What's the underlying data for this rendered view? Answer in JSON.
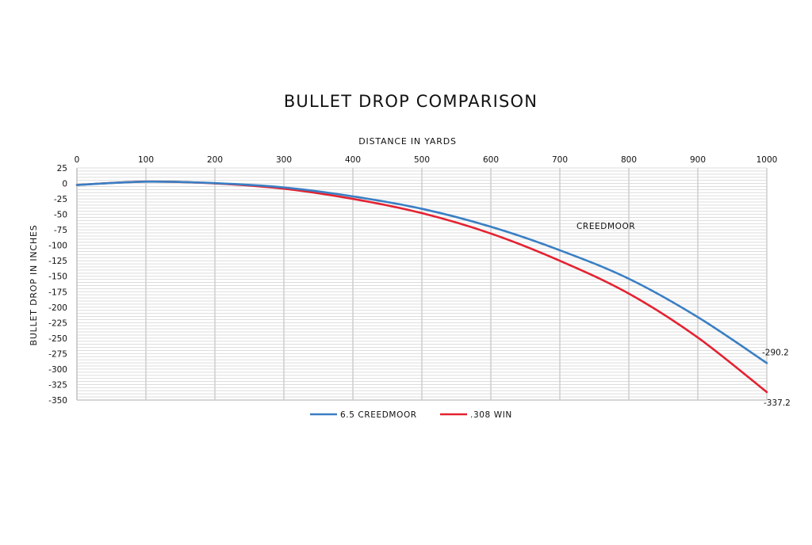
{
  "chart_data": {
    "type": "line",
    "title": "BULLET DROP COMPARISON",
    "xlabel": "DISTANCE IN  YARDS",
    "ylabel": "BULLET DROP IN INCHES",
    "x_ticks": [
      "0",
      "100",
      "200",
      "300",
      "400",
      "500",
      "600",
      "700",
      "800",
      "900",
      "1000"
    ],
    "y_ticks": [
      "25",
      "0",
      "-25",
      "-50",
      "-75",
      "-100",
      "-125",
      "-150",
      "-175",
      "-200",
      "-225",
      "-250",
      "-275",
      "-300",
      "-325",
      "-350"
    ],
    "xlim": [
      0,
      1000
    ],
    "ylim": [
      -350,
      25
    ],
    "x_axis_position": "top",
    "grid": true,
    "legend_position": "bottom-center",
    "annotations": [
      {
        "text": "CREEDMOOR"
      },
      {
        "text": "-290.2",
        "series": "6.5 CREEDMOOR",
        "x": 1000
      },
      {
        "text": "-337.2",
        "series": ".308 WIN",
        "x": 1000
      }
    ],
    "x": [
      0,
      100,
      200,
      300,
      400,
      500,
      600,
      700,
      800,
      900,
      1000
    ],
    "series": [
      {
        "name": "6.5 CREEDMOOR",
        "color": "#3a7fc4",
        "values": [
          -2.5,
          2.8,
          0.5,
          -6.5,
          -21,
          -41,
          -70,
          -108,
          -154,
          -216,
          -290.2
        ]
      },
      {
        "name": ".308 WIN",
        "color": "#e42231",
        "values": [
          -2.5,
          3.0,
          0.0,
          -8.5,
          -25,
          -48,
          -81,
          -125,
          -178,
          -249,
          -337.2
        ]
      }
    ]
  }
}
